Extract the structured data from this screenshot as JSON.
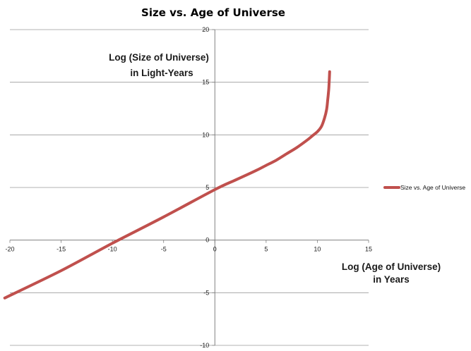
{
  "chart_data": {
    "type": "line",
    "title": "Size vs. Age of Universe",
    "xlabel_lines": [
      "Log (Age of Universe)",
      "in Years"
    ],
    "ylabel_lines": [
      "Log (Size of Universe)",
      "in Light-Years"
    ],
    "xlim": [
      -20,
      15
    ],
    "ylim": [
      -10,
      20
    ],
    "xticks": [
      -20,
      -15,
      -10,
      -5,
      0,
      5,
      10,
      15
    ],
    "yticks": [
      -10,
      -5,
      0,
      5,
      10,
      15,
      20
    ],
    "grid": "horizontal",
    "legend_position": "right",
    "series_color": "#C0504D",
    "series": [
      {
        "name": "Size vs. Age of Universe",
        "x": [
          -20.5,
          -15,
          -10,
          -5,
          0,
          2,
          4,
          5,
          6,
          7,
          8,
          9,
          9.5,
          10,
          10.4,
          10.7,
          10.9,
          11.0,
          11.1,
          11.15,
          11.2
        ],
        "y": [
          -5.5,
          -2.9,
          -0.3,
          2.2,
          4.8,
          5.7,
          6.6,
          7.1,
          7.6,
          8.2,
          8.8,
          9.5,
          9.9,
          10.3,
          10.8,
          11.6,
          12.4,
          13.2,
          14.2,
          15.0,
          16.0
        ]
      }
    ]
  }
}
